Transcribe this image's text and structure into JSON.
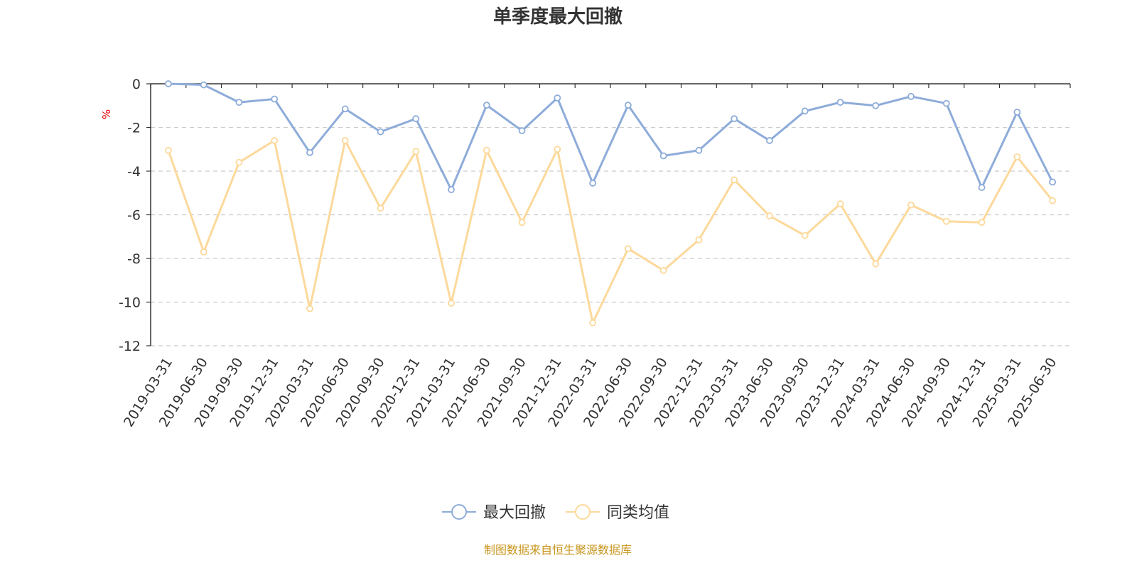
{
  "chart_data": {
    "type": "line",
    "title": "单季度最大回撤",
    "ylabel": "%",
    "ylim": [
      -12,
      0
    ],
    "yticks": [
      0,
      -2,
      -4,
      -6,
      -8,
      -10,
      -12
    ],
    "grid": true,
    "legend_position": "bottom-center",
    "categories": [
      "2019-03-31",
      "2019-06-30",
      "2019-09-30",
      "2019-12-31",
      "2020-03-31",
      "2020-06-30",
      "2020-09-30",
      "2020-12-31",
      "2021-03-31",
      "2021-06-30",
      "2021-09-30",
      "2021-12-31",
      "2022-03-31",
      "2022-06-30",
      "2022-09-30",
      "2022-12-31",
      "2023-03-31",
      "2023-06-30",
      "2023-09-30",
      "2023-12-31",
      "2024-03-31",
      "2024-06-30",
      "2024-09-30",
      "2024-12-31",
      "2025-03-31",
      "2025-06-30"
    ],
    "series": [
      {
        "name": "最大回撤",
        "color": "#8eacd9",
        "values": [
          0.0,
          -0.05,
          -0.85,
          -0.7,
          -3.15,
          -1.15,
          -2.2,
          -1.6,
          -4.85,
          -0.98,
          -2.15,
          -0.65,
          -4.55,
          -0.98,
          -3.3,
          -3.05,
          -1.6,
          -2.6,
          -1.25,
          -0.85,
          -1.0,
          -0.58,
          -0.9,
          -4.75,
          -1.3,
          -4.5
        ]
      },
      {
        "name": "同类均值",
        "color": "#fcd99b",
        "values": [
          -3.05,
          -7.7,
          -3.6,
          -2.6,
          -10.3,
          -2.6,
          -5.7,
          -3.1,
          -10.05,
          -3.05,
          -6.35,
          -3.0,
          -10.95,
          -7.55,
          -8.55,
          -7.15,
          -4.4,
          -6.05,
          -6.95,
          -5.5,
          -8.25,
          -5.55,
          -6.3,
          -6.35,
          -3.35,
          -5.35
        ]
      }
    ]
  },
  "footer": {
    "source_text": "制图数据来自恒生聚源数据库"
  }
}
